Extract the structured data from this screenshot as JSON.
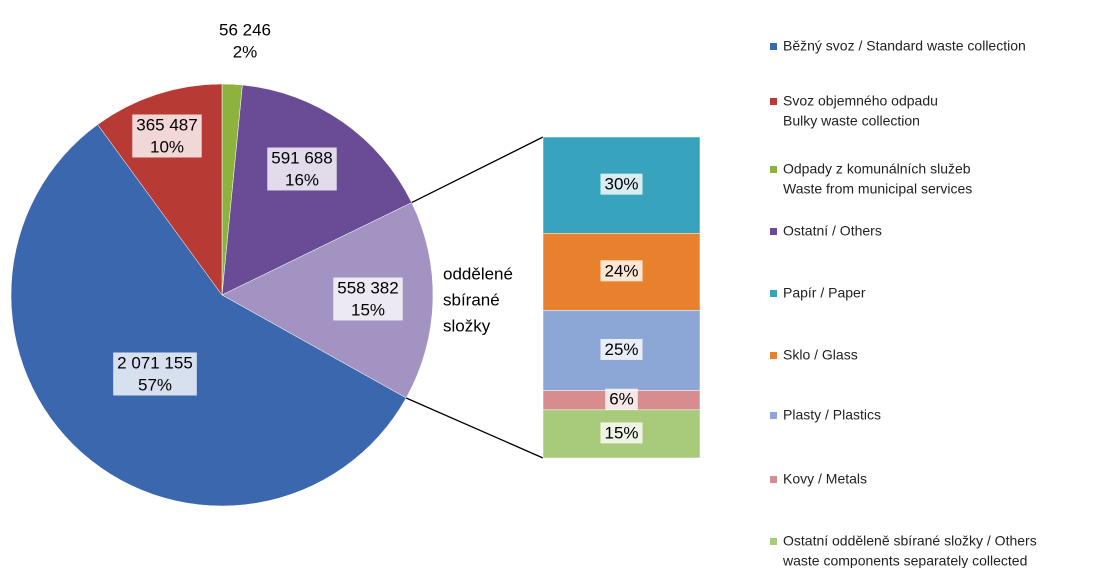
{
  "chart_data": {
    "type": "pie-of-bar",
    "pie": {
      "categories": [
        [
          "Běžný svoz / Standard waste collection"
        ],
        [
          "Svoz objemného odpadu",
          "Bulky waste collection"
        ],
        [
          "Odpady z komunálních služeb",
          "Waste from municipal services"
        ],
        [
          "Ostatní / Others"
        ],
        [
          "oddělené",
          "sbírané",
          "složky"
        ]
      ],
      "colors": [
        "#3a67ad",
        "#b83a35",
        "#8db33e",
        "#6a4b96",
        "#a393c3"
      ],
      "values": [
        2071155,
        365487,
        56246,
        591688,
        558382
      ],
      "value_labels": [
        "2 071 155",
        "365 487",
        "56 246",
        "591 688",
        "558 382"
      ],
      "percents": [
        57,
        10,
        2,
        16,
        15
      ],
      "percent_labels": [
        "57%",
        "10%",
        "2%",
        "16%",
        "15%"
      ]
    },
    "bar": {
      "categories": [
        [
          "Papír / Paper"
        ],
        [
          "Sklo / Glass"
        ],
        [
          "Plasty / Plastics"
        ],
        [
          "Kovy / Metals"
        ],
        [
          "Ostatní odděleně sbírané složky / Others",
          "waste components separately collected"
        ]
      ],
      "colors": [
        "#38a3bd",
        "#e8812d",
        "#8ca6d5",
        "#d78d8d",
        "#a8ca7b"
      ],
      "values": [
        30,
        24,
        25,
        6,
        15
      ],
      "value_labels": [
        "30%",
        "24%",
        "25%",
        "6%",
        "15%"
      ]
    }
  }
}
